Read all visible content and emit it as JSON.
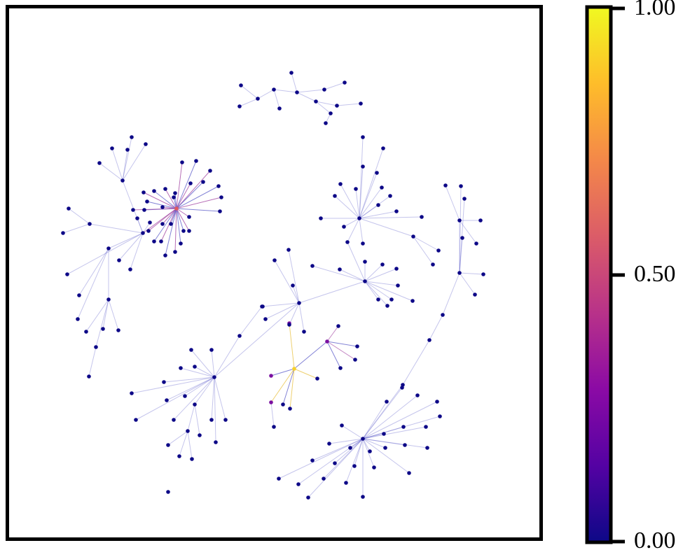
{
  "chart_data": {
    "type": "network",
    "colorbar": {
      "colormap": "plasma",
      "lim": [
        0,
        1
      ],
      "ticks": [
        {
          "value": 0,
          "label": "0.00"
        },
        {
          "value": 0.5,
          "label": "0.50"
        },
        {
          "value": 1,
          "label": "1.00"
        }
      ]
    }
  }
}
